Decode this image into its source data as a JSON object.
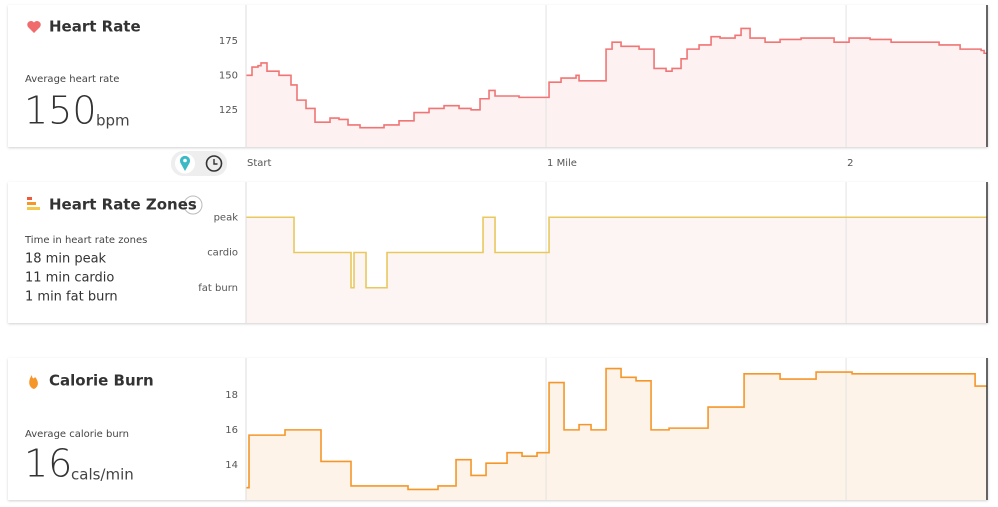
{
  "chart_data": [
    {
      "type": "line",
      "drawstyle": "steps-post",
      "title": "Heart Rate",
      "stat_label": "Average heart rate",
      "stat_value": 150,
      "stat_unit": "bpm",
      "color": "#f07575",
      "fill": "#fdf1f1",
      "x": [
        0,
        0.02,
        0.04,
        0.05,
        0.07,
        0.11,
        0.15,
        0.17,
        0.2,
        0.23,
        0.28,
        0.31,
        0.34,
        0.38,
        0.46,
        0.51,
        0.56,
        0.61,
        0.66,
        0.71,
        0.75,
        0.78,
        0.81,
        0.83,
        0.91,
        1.01,
        1.05,
        1.1,
        1.11,
        1.2,
        1.22,
        1.25,
        1.31,
        1.36,
        1.4,
        1.42,
        1.45,
        1.47,
        1.51,
        1.55,
        1.58,
        1.63,
        1.65,
        1.68,
        1.73,
        1.78,
        1.85,
        1.96,
        2.01,
        2.08,
        2.15,
        2.31,
        2.38,
        2.45,
        2.46,
        2.47
      ],
      "values": [
        150,
        156,
        157,
        159,
        153,
        150,
        143,
        132,
        126,
        116,
        119,
        118,
        114,
        112,
        114,
        117,
        123,
        126,
        128,
        126,
        125,
        133,
        139,
        135,
        134,
        145,
        148,
        150,
        146,
        169,
        174,
        171,
        169,
        155,
        153,
        155,
        162,
        169,
        172,
        178,
        177,
        179,
        184,
        177,
        174,
        176,
        177,
        174,
        177,
        176,
        174,
        172,
        169,
        168,
        166,
        166
      ],
      "xlim": [
        0,
        2.473
      ],
      "ylim": [
        98,
        201
      ],
      "yticks": [
        125,
        150,
        175
      ],
      "xticks": [
        {
          "value": 0,
          "label": "Start"
        },
        {
          "value": 1,
          "label": "1 Mile"
        },
        2
      ]
    },
    {
      "type": "line",
      "drawstyle": "steps-post",
      "title": "Heart Rate Zones",
      "summary_title": "Time in heart rate zones",
      "summary": [
        "18 min peak",
        "11 min cardio",
        "1 min fat burn"
      ],
      "color": "#e9c85e",
      "fill": "#fdf5f4",
      "x": [
        0,
        0.16,
        0.35,
        0.36,
        0.4,
        0.47,
        0.79,
        0.83,
        1.01,
        2.47
      ],
      "values": [
        3,
        2,
        1,
        2,
        1,
        2,
        3,
        2,
        3,
        3
      ],
      "xlim": [
        0,
        2.473
      ],
      "ylim": [
        0,
        4
      ],
      "yticks": [
        {
          "value": 1,
          "label": "fat burn"
        },
        {
          "value": 2,
          "label": "cardio"
        },
        {
          "value": 3,
          "label": "peak"
        }
      ]
    },
    {
      "type": "line",
      "drawstyle": "steps-post",
      "title": "Calorie Burn",
      "stat_label": "Average calorie burn",
      "stat_value": 16,
      "stat_unit": "cals/min",
      "color": "#f5962a",
      "fill": "#fdf3e8",
      "x": [
        0,
        0.01,
        0.13,
        0.25,
        0.35,
        0.54,
        0.64,
        0.7,
        0.75,
        0.8,
        0.87,
        0.92,
        0.97,
        1.01,
        1.06,
        1.11,
        1.15,
        1.2,
        1.25,
        1.3,
        1.35,
        1.41,
        1.54,
        1.66,
        1.78,
        1.9,
        2.02,
        2.43,
        2.47
      ],
      "values": [
        12.7,
        15.7,
        16.0,
        14.2,
        12.8,
        12.6,
        12.8,
        14.3,
        13.4,
        14.1,
        14.7,
        14.5,
        14.7,
        18.7,
        16.0,
        16.3,
        16.0,
        19.5,
        19.0,
        18.8,
        16.0,
        16.1,
        17.3,
        19.2,
        18.9,
        19.3,
        19.2,
        18.5,
        18.5
      ],
      "xlim": [
        0,
        2.473
      ],
      "ylim": [
        12,
        20.1
      ],
      "yticks": [
        14,
        16,
        18
      ]
    }
  ]
}
